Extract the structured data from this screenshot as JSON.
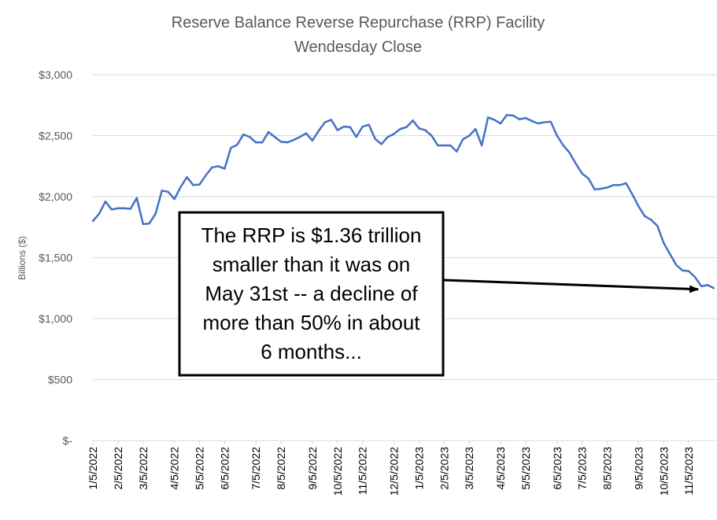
{
  "chart_data": {
    "type": "line",
    "title": [
      "Reserve Balance Reverse Repurchase (RRP) Facility",
      "Wendesday Close"
    ],
    "ylabel": "Billions ($)",
    "xlabel": "",
    "ylim": [
      0,
      3000
    ],
    "grid": true,
    "legend": "none",
    "line_color": "#4472c4",
    "y_ticks": [
      {
        "value": 0,
        "label": "$-"
      },
      {
        "value": 500,
        "label": "$500"
      },
      {
        "value": 1000,
        "label": "$1,000"
      },
      {
        "value": 1500,
        "label": "$1,500"
      },
      {
        "value": 2000,
        "label": "$2,000"
      },
      {
        "value": 2500,
        "label": "$2,500"
      },
      {
        "value": 3000,
        "label": "$3,000"
      }
    ],
    "x_ticks": [
      {
        "week": 0,
        "label": "1/5/2022"
      },
      {
        "week": 4,
        "label": "2/5/2022"
      },
      {
        "week": 8,
        "label": "3/5/2022"
      },
      {
        "week": 13,
        "label": "4/5/2022"
      },
      {
        "week": 17,
        "label": "5/5/2022"
      },
      {
        "week": 21,
        "label": "6/5/2022"
      },
      {
        "week": 26,
        "label": "7/5/2022"
      },
      {
        "week": 30,
        "label": "8/5/2022"
      },
      {
        "week": 35,
        "label": "9/5/2022"
      },
      {
        "week": 39,
        "label": "10/5/2022"
      },
      {
        "week": 43,
        "label": "11/5/2022"
      },
      {
        "week": 48,
        "label": "12/5/2022"
      },
      {
        "week": 52,
        "label": "1/5/2023"
      },
      {
        "week": 56,
        "label": "2/5/2023"
      },
      {
        "week": 60,
        "label": "3/5/2023"
      },
      {
        "week": 65,
        "label": "4/5/2023"
      },
      {
        "week": 69,
        "label": "5/5/2023"
      },
      {
        "week": 74,
        "label": "6/5/2023"
      },
      {
        "week": 78,
        "label": "7/5/2023"
      },
      {
        "week": 82,
        "label": "8/5/2023"
      },
      {
        "week": 87,
        "label": "9/5/2023"
      },
      {
        "week": 91,
        "label": "10/5/2023"
      },
      {
        "week": 95,
        "label": "11/5/2023"
      }
    ],
    "x_range": [
      0,
      99.5
    ],
    "series": [
      {
        "values": [
          1800,
          1860,
          1960,
          1895,
          1905,
          1905,
          1900,
          1990,
          1775,
          1780,
          1860,
          2050,
          2040,
          1980,
          2080,
          2160,
          2095,
          2100,
          2175,
          2240,
          2250,
          2230,
          2400,
          2425,
          2510,
          2490,
          2445,
          2445,
          2530,
          2490,
          2450,
          2445,
          2465,
          2490,
          2520,
          2460,
          2540,
          2610,
          2630,
          2545,
          2575,
          2570,
          2490,
          2575,
          2590,
          2475,
          2430,
          2490,
          2515,
          2555,
          2570,
          2625,
          2560,
          2545,
          2500,
          2420,
          2420,
          2420,
          2370,
          2470,
          2500,
          2555,
          2420,
          2650,
          2630,
          2600,
          2670,
          2665,
          2635,
          2645,
          2620,
          2600,
          2610,
          2615,
          2500,
          2420,
          2360,
          2270,
          2190,
          2150,
          2060,
          2065,
          2075,
          2095,
          2095,
          2110,
          2020,
          1920,
          1840,
          1810,
          1760,
          1620,
          1530,
          1440,
          1395,
          1390,
          1340,
          1265,
          1275,
          1250
        ]
      }
    ],
    "annotation": {
      "lines": [
        "The RRP is $1.36 trillion",
        "smaller than it was on",
        "May 31st -- a decline of",
        "more than 50% in about",
        "6 months..."
      ],
      "arrow_target_week": 96.5,
      "arrow_target_value": 1240
    }
  }
}
